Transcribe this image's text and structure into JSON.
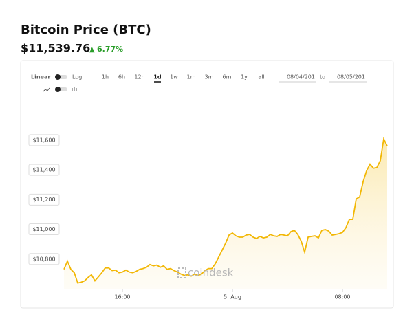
{
  "header": {
    "title": "Bitcoin Price (BTC)",
    "price": "$11,539.76",
    "change": "6.77%"
  },
  "controls": {
    "scales": [
      "Linear",
      "Log"
    ],
    "ranges": [
      "1h",
      "6h",
      "12h",
      "1d",
      "1w",
      "1m",
      "3m",
      "6m",
      "1y",
      "all"
    ],
    "selected_range": "1d",
    "from": "08/04/201",
    "to_label": "to",
    "to": "08/05/201"
  },
  "watermark": "coindesk",
  "chart_data": {
    "type": "line",
    "color": "#f2b705",
    "x": [
      11.75,
      12,
      12.25,
      12.5,
      12.75,
      13,
      13.25,
      13.5,
      13.75,
      14,
      14.25,
      14.5,
      14.75,
      15,
      15.25,
      15.5,
      15.75,
      16,
      16.25,
      16.5,
      16.75,
      17,
      17.25,
      17.5,
      17.75,
      18,
      18.25,
      18.5,
      18.75,
      19,
      19.25,
      19.5,
      19.75,
      20,
      20.25,
      20.5,
      20.75,
      21,
      21.25,
      21.5,
      21.75,
      22,
      22.25,
      22.5,
      22.75,
      23,
      23.25,
      23.5,
      23.75,
      24,
      24.25,
      24.5,
      24.75,
      25,
      25.25,
      25.5,
      25.75,
      26,
      26.25,
      26.5,
      26.75,
      27,
      27.25,
      27.5,
      27.75,
      28,
      28.25,
      28.5,
      28.75,
      29,
      29.25,
      29.5,
      29.75,
      30,
      30.25,
      30.5,
      30.75,
      31,
      31.25,
      31.5,
      31.75,
      32,
      32.25,
      32.5,
      32.75,
      33,
      33.25,
      33.5,
      33.75,
      34,
      34.25,
      34.5,
      34.75,
      35,
      35.25
    ],
    "values": [
      10731,
      10786,
      10731,
      10708,
      10639,
      10644,
      10653,
      10676,
      10694,
      10653,
      10680,
      10708,
      10740,
      10740,
      10722,
      10726,
      10708,
      10713,
      10726,
      10713,
      10708,
      10717,
      10731,
      10736,
      10745,
      10763,
      10754,
      10759,
      10745,
      10754,
      10731,
      10736,
      10722,
      10713,
      10699,
      10690,
      10694,
      10685,
      10699,
      10690,
      10699,
      10722,
      10736,
      10736,
      10768,
      10814,
      10860,
      10906,
      10961,
      10975,
      10956,
      10947,
      10947,
      10961,
      10965,
      10947,
      10938,
      10952,
      10942,
      10947,
      10965,
      10956,
      10952,
      10965,
      10961,
      10956,
      10984,
      10993,
      10965,
      10920,
      10846,
      10947,
      10952,
      10956,
      10942,
      10993,
      10998,
      10988,
      10961,
      10965,
      10970,
      10979,
      11011,
      11067,
      11067,
      11205,
      11218,
      11320,
      11393,
      11439,
      11411,
      11416,
      11462,
      11609,
      11560
    ],
    "xlim": [
      11.75,
      35.35
    ],
    "xticks": [
      {
        "value": 16,
        "label": "16:00"
      },
      {
        "value": 24,
        "label": "5. Aug"
      },
      {
        "value": 32,
        "label": "08:00"
      }
    ],
    "ylim": [
      10600,
      11780
    ],
    "yticks": [
      {
        "value": 10800,
        "label": "$10,800"
      },
      {
        "value": 11000,
        "label": "$11,000"
      },
      {
        "value": 11200,
        "label": "$11,200"
      },
      {
        "value": 11400,
        "label": "$11,400"
      },
      {
        "value": 11600,
        "label": "$11,600"
      }
    ],
    "grid": false
  }
}
